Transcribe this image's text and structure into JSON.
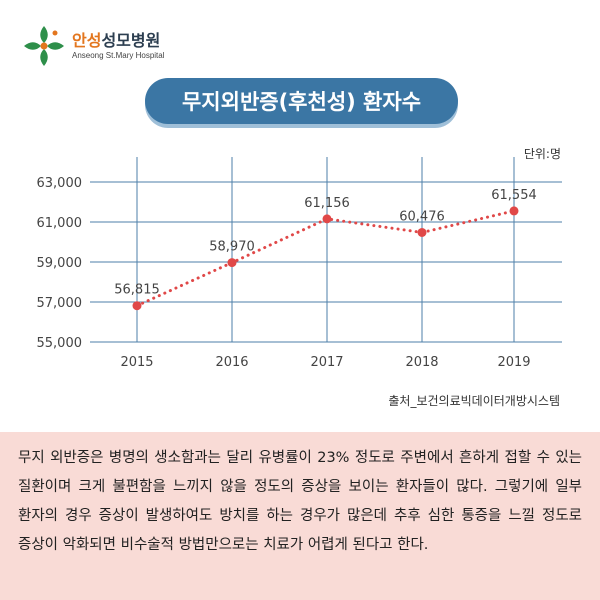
{
  "logo": {
    "name_ko_accent": "안성",
    "name_ko_rest": "성모병원",
    "name_en": "Anseong St.Mary Hospital"
  },
  "title": "무지외반증(후천성) 환자수",
  "unit": "단위:명",
  "source": "출처_보건의료빅데이터개방시스템",
  "description": "무지 외반증은 병명의 생소함과는 달리 유병률이 23% 정도로 주변에서 흔하게 접할 수 있는 질환이며 크게 불편함을 느끼지 않을 정도의 증상을 보이는 환자들이 많다. 그렇기에 일부 환자의 경우 증상이 발생하여도 방치를 하는 경우가 많은데 추후 심한 통증을 느낄 정도로 증상이 악화되면 비수술적 방법만으로는 치료가 어렵게 된다고 한다.",
  "colors": {
    "accent": "#3b76a4",
    "line": "#e04848",
    "grid": "#4d7fa8",
    "panel": "#f9dbd6"
  },
  "chart_data": {
    "type": "line",
    "categories": [
      "2015",
      "2016",
      "2017",
      "2018",
      "2019"
    ],
    "values": [
      56815,
      58970,
      61156,
      60476,
      61554
    ],
    "value_labels": [
      "56,815",
      "58,970",
      "61,156",
      "60,476",
      "61,554"
    ],
    "ytick_labels": [
      "63,000",
      "61,000",
      "59,000",
      "57,000",
      "55,000"
    ],
    "yticks": [
      63000,
      61000,
      59000,
      57000,
      55000
    ],
    "ylim": [
      55000,
      63000
    ],
    "line_style": "dotted",
    "grid": true
  }
}
